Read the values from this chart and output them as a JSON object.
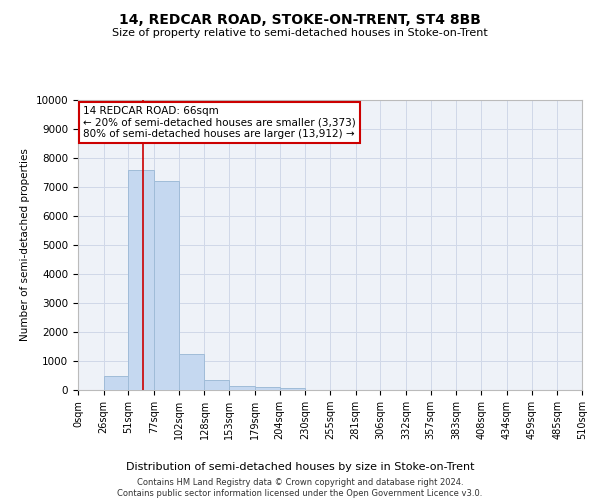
{
  "title": "14, REDCAR ROAD, STOKE-ON-TRENT, ST4 8BB",
  "subtitle": "Size of property relative to semi-detached houses in Stoke-on-Trent",
  "xlabel": "Distribution of semi-detached houses by size in Stoke-on-Trent",
  "ylabel": "Number of semi-detached properties",
  "bin_labels": [
    "0sqm",
    "26sqm",
    "51sqm",
    "77sqm",
    "102sqm",
    "128sqm",
    "153sqm",
    "179sqm",
    "204sqm",
    "230sqm",
    "255sqm",
    "281sqm",
    "306sqm",
    "332sqm",
    "357sqm",
    "383sqm",
    "408sqm",
    "434sqm",
    "459sqm",
    "485sqm",
    "510sqm"
  ],
  "bin_edges": [
    0,
    26,
    51,
    77,
    102,
    128,
    153,
    179,
    204,
    230,
    255,
    281,
    306,
    332,
    357,
    383,
    408,
    434,
    459,
    485,
    510
  ],
  "bar_values": [
    0,
    500,
    7600,
    7200,
    1250,
    350,
    150,
    100,
    80,
    0,
    0,
    0,
    0,
    0,
    0,
    0,
    0,
    0,
    0,
    0
  ],
  "bar_color": "#c5d8f0",
  "bar_edgecolor": "#a0bcd8",
  "property_size": 66,
  "redline_color": "#cc0000",
  "annotation_line1": "14 REDCAR ROAD: 66sqm",
  "annotation_line2": "← 20% of semi-detached houses are smaller (3,373)",
  "annotation_line3": "80% of semi-detached houses are larger (13,912) →",
  "annotation_box_edgecolor": "#cc0000",
  "ylim": [
    0,
    10000
  ],
  "yticks": [
    0,
    1000,
    2000,
    3000,
    4000,
    5000,
    6000,
    7000,
    8000,
    9000,
    10000
  ],
  "grid_color": "#d0d8e8",
  "bg_color": "#eef2f8",
  "footer": "Contains HM Land Registry data © Crown copyright and database right 2024.\nContains public sector information licensed under the Open Government Licence v3.0."
}
